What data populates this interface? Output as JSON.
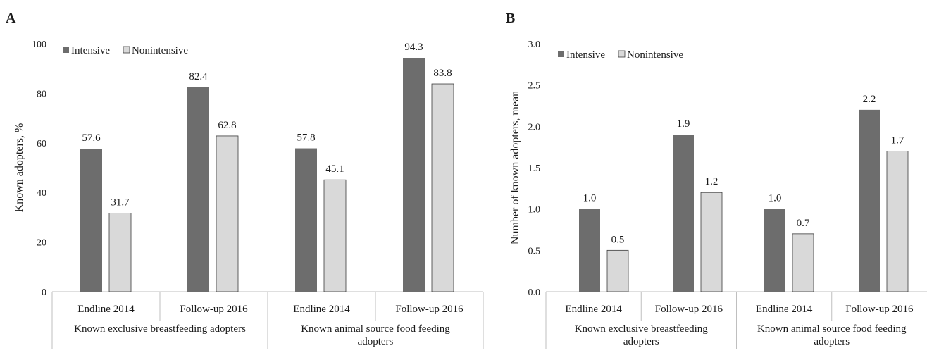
{
  "colors": {
    "intensive": "#6d6d6d",
    "nonintensive": "#d9d9d9",
    "bar_stroke": "#3a3a3a",
    "axis": "#bfbfbf"
  },
  "chart_data": [
    {
      "panel": "A",
      "type": "bar",
      "ylabel": "Known adopters, %",
      "ylim": [
        0,
        100
      ],
      "yticks": [
        0,
        20,
        40,
        60,
        80,
        100
      ],
      "ytick_labels": [
        "0",
        "20",
        "40",
        "60",
        "80",
        "100"
      ],
      "categories": [
        "Endline 2014",
        "Follow-up 2016",
        "Endline 2014",
        "Follow-up 2016"
      ],
      "groups": [
        {
          "label_lines": [
            "Known exclusive breastfeeding adopters"
          ]
        },
        {
          "label_lines": [
            "Known animal source food feeding",
            "adopters"
          ]
        }
      ],
      "series": [
        {
          "name": "Intensive",
          "values": [
            57.6,
            82.4,
            57.8,
            94.3
          ],
          "labels": [
            "57.6",
            "82.4",
            "57.8",
            "94.3"
          ]
        },
        {
          "name": "Nonintensive",
          "values": [
            31.7,
            62.8,
            45.1,
            83.8
          ],
          "labels": [
            "31.7",
            "62.8",
            "45.1",
            "83.8"
          ]
        }
      ],
      "legend_position": "top-left",
      "grid": false
    },
    {
      "panel": "B",
      "type": "bar",
      "ylabel": "Number of known adopters, mean",
      "ylim": [
        0,
        3
      ],
      "yticks": [
        0,
        0.5,
        1,
        1.5,
        2,
        2.5,
        3
      ],
      "ytick_labels": [
        "0.0",
        "0.5",
        "1.0",
        "1.5",
        "2.0",
        "2.5",
        "3.0"
      ],
      "categories": [
        "Endline 2014",
        "Follow-up 2016",
        "Endline 2014",
        "Follow-up 2016"
      ],
      "groups": [
        {
          "label_lines": [
            "Known exclusive breastfeeding",
            "adopters"
          ]
        },
        {
          "label_lines": [
            "Known animal source food feeding",
            "adopters"
          ]
        }
      ],
      "series": [
        {
          "name": "Intensive",
          "values": [
            1.0,
            1.9,
            1.0,
            2.2
          ],
          "labels": [
            "1.0",
            "1.9",
            "1.0",
            "2.2"
          ]
        },
        {
          "name": "Nonintensive",
          "values": [
            0.5,
            1.2,
            0.7,
            1.7
          ],
          "labels": [
            "0.5",
            "1.2",
            "0.7",
            "1.7"
          ]
        }
      ],
      "legend_position": "top-left",
      "grid": false
    }
  ]
}
